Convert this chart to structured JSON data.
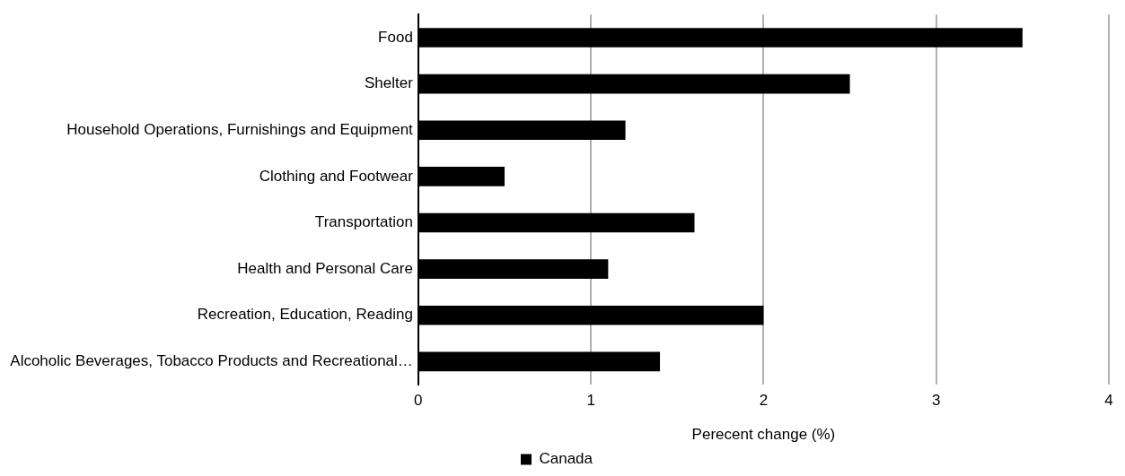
{
  "chart_data": {
    "type": "bar",
    "orientation": "horizontal",
    "categories": [
      "Food",
      "Shelter",
      "Household Operations, Furnishings and Equipment",
      "Clothing and Footwear",
      "Transportation",
      "Health and Personal Care",
      "Recreation, Education, Reading",
      "Alcoholic Beverages, Tobacco Products and Recreational…"
    ],
    "series": [
      {
        "name": "Canada",
        "color": "#000000",
        "values": [
          3.5,
          2.5,
          1.2,
          0.5,
          1.6,
          1.1,
          2.0,
          1.4
        ]
      }
    ],
    "xlim": [
      0,
      4
    ],
    "xticks": [
      0,
      1,
      2,
      3,
      4
    ],
    "xlabel": "Perecent change (%)",
    "grid": "x",
    "legend": "bottom"
  }
}
